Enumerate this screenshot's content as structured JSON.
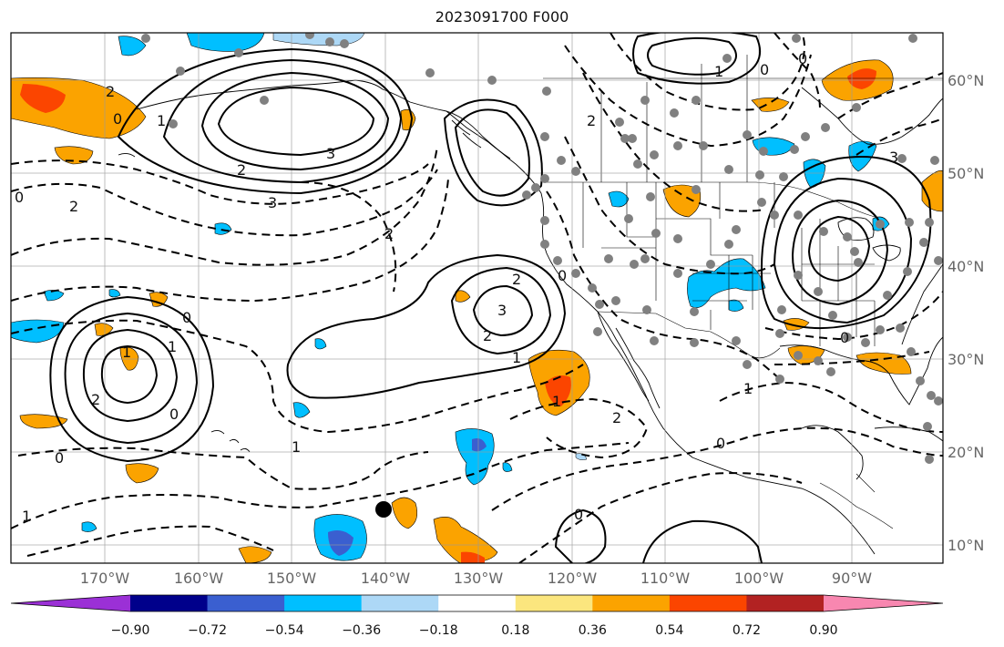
{
  "title": "2023091700 F000",
  "lon_labels": [
    "170°W",
    "160°W",
    "150°W",
    "140°W",
    "130°W",
    "120°W",
    "110°W",
    "100°W",
    "90°W"
  ],
  "lat_labels": [
    "60°N",
    "50°N",
    "40°N",
    "30°N",
    "20°N",
    "10°N"
  ],
  "colorbar": {
    "colors": [
      "#9b30d6",
      "#00008b",
      "#3a5fd0",
      "#00bfff",
      "#add8f6",
      "#ffffff",
      "#fbe67e",
      "#fba300",
      "#fb4500",
      "#b22222",
      "#f887b0"
    ],
    "tick_labels": [
      "−0.90",
      "−0.72",
      "−0.54",
      "−0.36",
      "−0.18",
      "0.18",
      "0.36",
      "0.54",
      "0.72",
      "0.90"
    ]
  },
  "contour_labels": [
    "2",
    "1",
    "0",
    "2",
    "3",
    "3",
    "2",
    "2",
    "3",
    "2",
    "1",
    "0",
    "2",
    "1",
    "1",
    "0",
    "1",
    "2",
    "0",
    "1",
    "0",
    "1",
    "0",
    "2",
    "0",
    "1",
    "0",
    "1",
    "0",
    "3",
    "0",
    "2",
    "0"
  ],
  "marker": {
    "name": "black-dot"
  }
}
